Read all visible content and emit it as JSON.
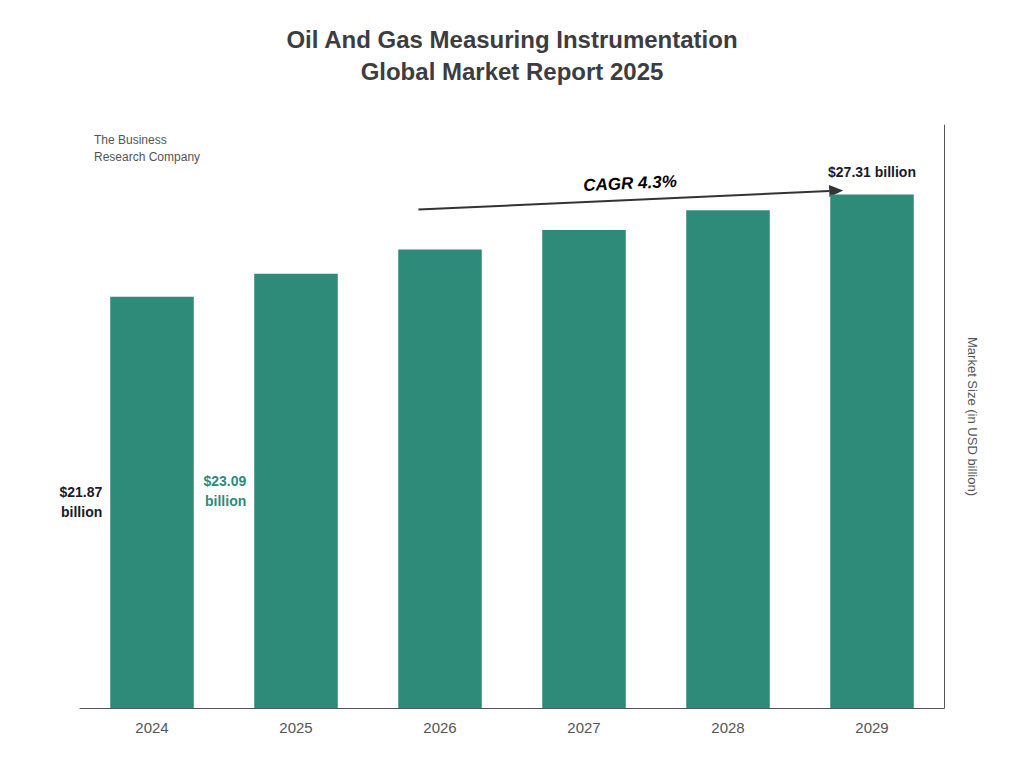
{
  "chart_data": {
    "type": "bar",
    "title": "Oil And Gas Measuring Instrumentation\nGlobal Market Report 2025",
    "categories": [
      "2024",
      "2025",
      "2026",
      "2027",
      "2028",
      "2029"
    ],
    "values": [
      21.87,
      23.09,
      24.38,
      25.42,
      26.47,
      27.31
    ],
    "color": "#2e8b7a",
    "ylabel": "Market Size (in USD billion)",
    "ylim": [
      0,
      31
    ],
    "yticks": [],
    "tick_labels": "x",
    "grid": false,
    "annotations": [
      {
        "text": "$21.87\nbillion",
        "category": "2024",
        "color": "#1a1a2e"
      },
      {
        "text": "$23.09\nbillion",
        "category": "2025",
        "color": "#2e8b7a"
      },
      {
        "text": "$27.31 billion",
        "category": "2029",
        "color": "#1a1a2e"
      },
      {
        "text": [
          "CAGR",
          "4.3%"
        ],
        "colors": [
          "#1a1a2e",
          "#2e8b7a"
        ],
        "arrow": [
          "2026",
          "2029"
        ]
      },
      {
        "text": "The Business\nResearch Company"
      }
    ]
  }
}
